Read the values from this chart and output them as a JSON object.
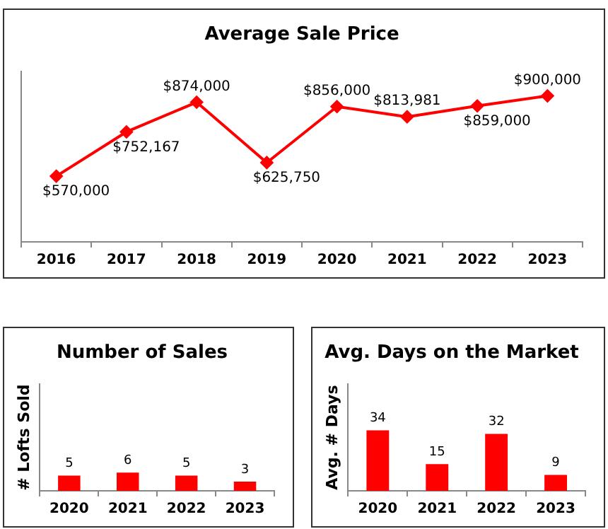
{
  "chart_data": [
    {
      "type": "line",
      "title": "Average Sale Price",
      "categories": [
        "2016",
        "2017",
        "2018",
        "2019",
        "2020",
        "2021",
        "2022",
        "2023"
      ],
      "series": [
        {
          "color": "#ff0000",
          "values": [
            570000,
            752167,
            874000,
            625750,
            856000,
            813981,
            859000,
            900000
          ],
          "value_labels": [
            "$570,000",
            "$752,167",
            "$874,000",
            "$625,750",
            "$856,000",
            "$813,981",
            "$859,000",
            "$900,000"
          ]
        }
      ],
      "ylim": [
        300000,
        1000000
      ],
      "tick_labels": "x",
      "legend": false,
      "marker": "diamond",
      "line_style": "solid"
    },
    {
      "type": "bar",
      "title": "Number of Sales",
      "ylabel": "# Lofts Sold",
      "categories": [
        "2020",
        "2021",
        "2022",
        "2023"
      ],
      "values": [
        5,
        6,
        5,
        3
      ],
      "color": "#ff0000",
      "ylim": [
        0,
        35
      ],
      "tick_labels": "x",
      "legend": false,
      "data_labels": true
    },
    {
      "type": "bar",
      "title": "Avg. Days on the Market",
      "ylabel": "Avg. # Days",
      "categories": [
        "2020",
        "2021",
        "2022",
        "2023"
      ],
      "values": [
        34,
        15,
        32,
        9
      ],
      "color": "#ff0000",
      "ylim": [
        0,
        60
      ],
      "tick_labels": "x",
      "legend": false,
      "data_labels": true
    }
  ]
}
